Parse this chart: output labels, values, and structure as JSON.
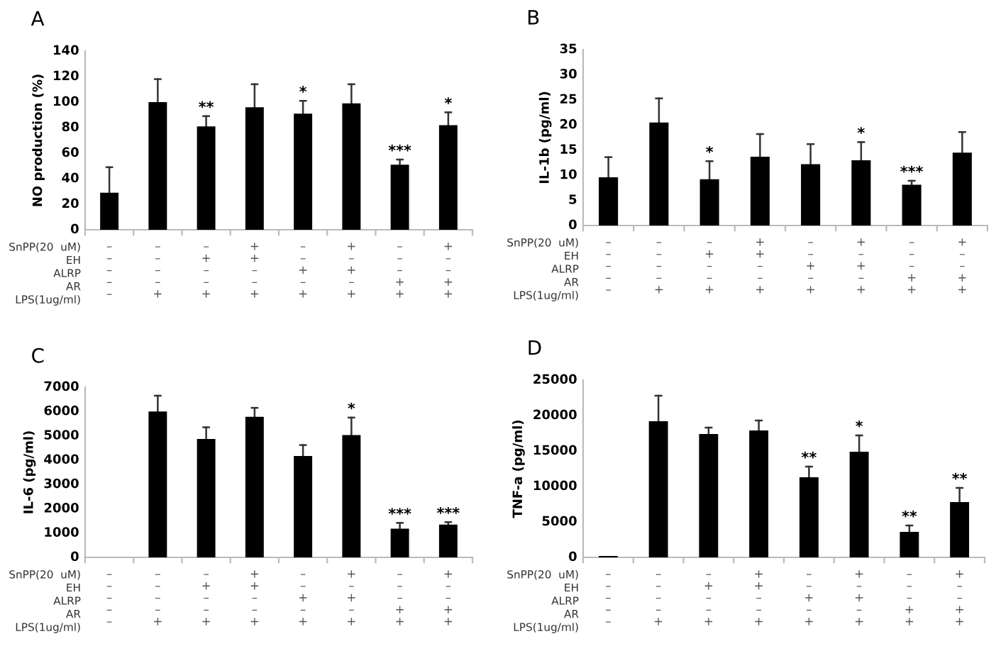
{
  "chart_data": [
    {
      "type": "bar",
      "title": "A",
      "ylabel": "NO production (%)",
      "categories": [
        "–\n–\n–\n–\n–",
        "–\n–\n–\n–\n+",
        "–\n+\n–\n–\n+",
        "+\n+\n–\n–\n+",
        "–\n–\n+\n–\n+",
        "+\n–\n+\n–\n+",
        "–\n–\n–\n+\n+",
        "+\n–\n–\n+\n+"
      ],
      "annotations": [
        "SnPP(20  uM)",
        "EH",
        "ALRP",
        "AR",
        "LPS(1ug/ml)"
      ],
      "series": [
        {
          "color": "#000000",
          "values": [
            29,
            100,
            81,
            96,
            91,
            99,
            51,
            82
          ],
          "errors": [
            [
              29,
              49
            ],
            [
              100,
              118
            ],
            [
              81,
              89
            ],
            [
              96,
              114
            ],
            [
              91,
              101
            ],
            [
              99,
              114
            ],
            [
              51,
              55
            ],
            [
              82,
              92
            ]
          ],
          "value_labels": [
            null,
            null,
            "**",
            null,
            "*",
            null,
            "***",
            "*"
          ]
        }
      ],
      "ylim": [
        0,
        140
      ],
      "yticks": [
        0,
        20,
        40,
        60,
        80,
        100,
        120,
        140
      ],
      "grid": false,
      "legend": false
    },
    {
      "type": "bar",
      "title": "B",
      "ylabel": "IL-1b (pg/ml)",
      "categories": [
        "–\n–\n–\n–\n–",
        "–\n–\n–\n–\n+",
        "–\n+\n–\n–\n+",
        "+\n+\n–\n–\n+",
        "–\n–\n+\n–\n+",
        "+\n–\n+\n–\n+",
        "–\n–\n–\n+\n+",
        "+\n–\n–\n+\n+"
      ],
      "annotations": [
        "SnPP(20  uM)",
        "EH",
        "ALRP",
        "AR",
        "LPS(1ug/ml)"
      ],
      "series": [
        {
          "color": "#000000",
          "values": [
            9.6,
            20.5,
            9.2,
            13.7,
            12.2,
            13.0,
            8.1,
            14.5
          ],
          "errors": [
            [
              9.6,
              13.6
            ],
            [
              20.5,
              25.3
            ],
            [
              9.2,
              12.8
            ],
            [
              13.7,
              18.2
            ],
            [
              12.2,
              16.2
            ],
            [
              13.0,
              16.6
            ],
            [
              8.1,
              8.9
            ],
            [
              14.5,
              18.6
            ]
          ],
          "value_labels": [
            null,
            null,
            "*",
            null,
            null,
            "*",
            "***",
            null
          ]
        }
      ],
      "ylim": [
        0,
        35
      ],
      "yticks": [
        0,
        5,
        10,
        15,
        20,
        25,
        30,
        35
      ],
      "grid": false,
      "legend": false
    },
    {
      "type": "bar",
      "title": "C",
      "ylabel": "IL-6 (pg/ml)",
      "categories": [
        "–\n–\n–\n–\n–",
        "–\n–\n–\n–\n+",
        "–\n+\n–\n–\n+",
        "+\n+\n–\n–\n+",
        "–\n–\n+\n–\n+",
        "+\n–\n+\n–\n+",
        "–\n–\n–\n+\n+",
        "+\n–\n–\n+\n+"
      ],
      "annotations": [
        "SnPP(20  uM)",
        "EH",
        "ALRP",
        "AR",
        "LPS(1ug/ml)"
      ],
      "series": [
        {
          "color": "#000000",
          "values": [
            0,
            6000,
            4870,
            5780,
            4170,
            5030,
            1180,
            1350
          ],
          "errors": [
            null,
            [
              6000,
              6650
            ],
            [
              4870,
              5350
            ],
            [
              5780,
              6150
            ],
            [
              4170,
              4620
            ],
            [
              5030,
              5750
            ],
            [
              1180,
              1420
            ],
            [
              1350,
              1450
            ]
          ],
          "value_labels": [
            null,
            null,
            null,
            null,
            null,
            "*",
            "***",
            "***"
          ]
        }
      ],
      "ylim": [
        0,
        7000
      ],
      "yticks": [
        0,
        1000,
        2000,
        3000,
        4000,
        5000,
        6000,
        7000
      ],
      "grid": false,
      "legend": false
    },
    {
      "type": "bar",
      "title": "D",
      "ylabel": "TNF-a (pg/ml)",
      "categories": [
        "–\n–\n–\n–\n–",
        "–\n–\n–\n–\n+",
        "–\n+\n–\n–\n+",
        "+\n+\n–\n–\n+",
        "–\n–\n+\n–\n+",
        "+\n–\n+\n–\n+",
        "–\n–\n–\n+\n+",
        "+\n–\n–\n+\n+"
      ],
      "annotations": [
        "SnPP(20  uM)",
        "EH",
        "ALRP",
        "AR",
        "LPS(1ug/ml)"
      ],
      "series": [
        {
          "color": "#000000",
          "values": [
            200,
            19200,
            17400,
            17900,
            11300,
            14900,
            3600,
            7800
          ],
          "errors": [
            null,
            [
              19200,
              22800
            ],
            [
              17400,
              18300
            ],
            [
              17900,
              19300
            ],
            [
              11300,
              12800
            ],
            [
              14900,
              17200
            ],
            [
              3600,
              4500
            ],
            [
              7800,
              9800
            ]
          ],
          "value_labels": [
            null,
            null,
            null,
            null,
            "**",
            "*",
            "**",
            "**"
          ]
        }
      ],
      "ylim": [
        0,
        25000
      ],
      "yticks": [
        0,
        5000,
        10000,
        15000,
        20000,
        25000
      ],
      "grid": false,
      "legend": false
    }
  ]
}
